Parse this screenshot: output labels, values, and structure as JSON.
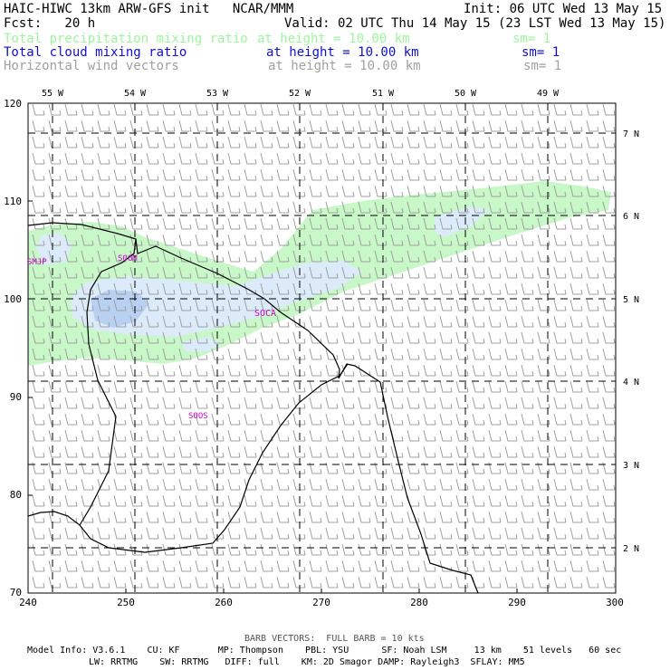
{
  "header": {
    "title_left": "HAIC-HIWC 13km ARW-GFS init   NCAR/MMM",
    "init": "Init: 06 UTC Wed 13 May 15",
    "fcst": "Fcst:   20 h",
    "valid": "Valid: 02 UTC Thu 14 May 15 (23 LST Wed 13 May 15)",
    "fields": [
      {
        "name": "Total precipitation mixing ratio",
        "level": "at height = 10.00 km",
        "sm": "sm= 1",
        "color": "#9cf59c"
      },
      {
        "name": "Total cloud mixing ratio",
        "level": "at height = 10.00 km",
        "sm": "sm= 1",
        "color": "#1010cc"
      },
      {
        "name": "Horizontal wind vectors",
        "level": "at height = 10.00 km",
        "sm": "sm= 1",
        "color": "#a0a0a0"
      }
    ]
  },
  "map": {
    "x_ticks": [
      "240",
      "250",
      "260",
      "270",
      "280",
      "290",
      "300"
    ],
    "y_ticks": [
      "70",
      "80",
      "90",
      "100",
      "110",
      "120"
    ],
    "lon_labels": [
      "55 W",
      "54 W",
      "53 W",
      "52 W",
      "51 W",
      "50 W",
      "49 W"
    ],
    "lat_labels": [
      "7 N",
      "6 N",
      "5 N",
      "4 N",
      "3 N",
      "2 N"
    ],
    "stations": [
      {
        "id": "SMJP",
        "color": "#cc00cc"
      },
      {
        "id": "SOGM",
        "color": "#cc00cc"
      },
      {
        "id": "SOCA",
        "color": "#cc00cc"
      },
      {
        "id": "SOOS",
        "color": "#cc00cc"
      }
    ],
    "barb_color": "#a0a0a0",
    "precip_color": "#c8f7c8",
    "cloud_light_color": "#dcebfa",
    "cloud_dark_color": "#b8d0f2"
  },
  "footer": {
    "barb_note": "BARB VECTORS:  FULL BARB = 10 kts",
    "model_line1": "Model Info: V3.6.1    CU: KF       MP: Thompson    PBL: YSU      SF: Noah LSM     13 km    51 levels   60 sec",
    "model_line2": "LW: RRTMG    SW: RRTMG   DIFF: full    KM: 2D Smagor DAMP: Rayleigh3  SFLAY: MM5"
  }
}
